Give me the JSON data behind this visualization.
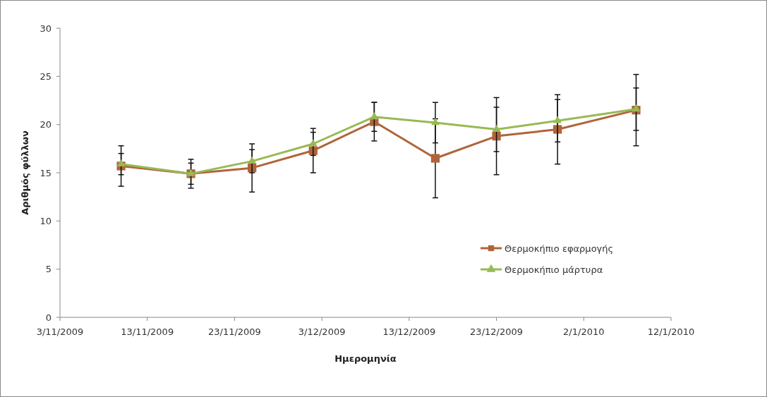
{
  "chart_data": {
    "type": "line",
    "xlabel": "Ημερομηνία",
    "ylabel": "Αριθμός φύλλων",
    "x": [
      "2009-11-10",
      "2009-11-18",
      "2009-11-25",
      "2009-12-02",
      "2009-12-09",
      "2009-12-16",
      "2009-12-23",
      "2009-12-30",
      "2010-01-08"
    ],
    "series": [
      {
        "name": "Θερμοκήπιο εφαρμογής",
        "color": "#b0643a",
        "marker": "square",
        "values": [
          15.7,
          14.9,
          15.5,
          17.3,
          20.3,
          16.5,
          18.8,
          19.5,
          21.5
        ],
        "errors": [
          2.1,
          1.5,
          2.5,
          2.3,
          2,
          4.1,
          4,
          3.6,
          3.7
        ]
      },
      {
        "name": "Θερμοκήπιο μάρτυρα",
        "color": "#98b954",
        "marker": "triangle",
        "values": [
          15.9,
          14.9,
          16.2,
          18.0,
          20.8,
          20.2,
          19.5,
          20.4,
          21.6
        ],
        "errors": [
          1.1,
          1.1,
          1.2,
          1.2,
          1.5,
          2.1,
          2.3,
          2.2,
          2.2
        ]
      }
    ],
    "xlim": [
      "2009-11-03",
      "2010-01-12"
    ],
    "xticks": [
      {
        "value": "2009-11-03",
        "label": "3/11/2009"
      },
      {
        "value": "2009-11-13",
        "label": "13/11/2009"
      },
      {
        "value": "2009-11-23",
        "label": "23/11/2009"
      },
      {
        "value": "2009-12-03",
        "label": "3/12/2009"
      },
      {
        "value": "2009-12-13",
        "label": "13/12/2009"
      },
      {
        "value": "2009-12-23",
        "label": "23/12/2009"
      },
      {
        "value": "2010-01-02",
        "label": "2/1/2010"
      },
      {
        "value": "2010-01-12",
        "label": "12/1/2010"
      }
    ],
    "ylim": [
      0,
      30
    ],
    "yticks": [
      0,
      5,
      10,
      15,
      20,
      25,
      30
    ],
    "grid": false,
    "legend": "right",
    "line_style": "solid"
  }
}
